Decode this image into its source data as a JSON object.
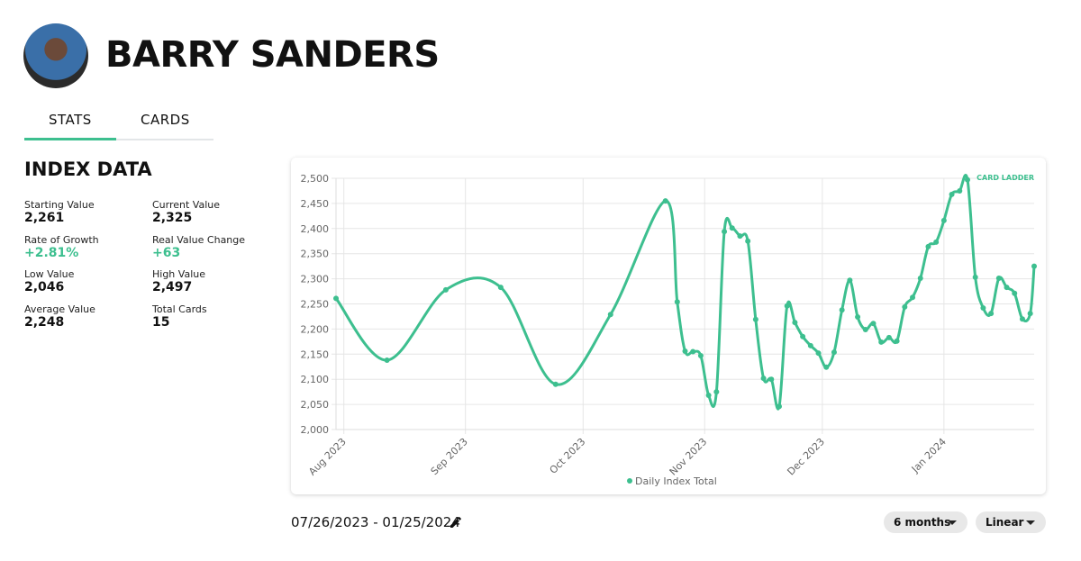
{
  "header": {
    "name": "BARRY SANDERS"
  },
  "tabs": [
    "STATS",
    "CARDS"
  ],
  "index_data": {
    "title": "INDEX DATA",
    "stats": [
      {
        "label": "Starting Value",
        "value": "2,261"
      },
      {
        "label": "Current Value",
        "value": "2,325"
      },
      {
        "label": "Rate of Growth",
        "value": "+2.81%"
      },
      {
        "label": "Real Value Change",
        "value": "+63"
      },
      {
        "label": "Low Value",
        "value": "2,046"
      },
      {
        "label": "High Value",
        "value": "2,497"
      },
      {
        "label": "Average Value",
        "value": "2,248"
      },
      {
        "label": "Total Cards",
        "value": "15"
      }
    ]
  },
  "chart_data": {
    "type": "line",
    "logo": "CARD LADDER",
    "x": [
      -2,
      11,
      26,
      40,
      54,
      68,
      82,
      85,
      87,
      89,
      91,
      93,
      95,
      97,
      99,
      101,
      103,
      105,
      107,
      109,
      111,
      113,
      115,
      117,
      119,
      121,
      123,
      125,
      127,
      129,
      131,
      133,
      135,
      137,
      139,
      141,
      143,
      145,
      147,
      149,
      151,
      153,
      155,
      157,
      159,
      161,
      163,
      165,
      167,
      169,
      171,
      173,
      175,
      176
    ],
    "series": [
      {
        "name": "Daily Index Total",
        "color": "#3dbf8f",
        "values": [
          2261,
          2138,
          2278,
          2283,
          2090,
          2229,
          2455,
          2254,
          2156,
          2155,
          2147,
          2068,
          2075,
          2394,
          2401,
          2385,
          2375,
          2219,
          2102,
          2100,
          2046,
          2246,
          2213,
          2185,
          2167,
          2152,
          2124,
          2154,
          2238,
          2297,
          2224,
          2199,
          2211,
          2174,
          2183,
          2176,
          2244,
          2263,
          2301,
          2364,
          2373,
          2416,
          2468,
          2475,
          2497,
          2303,
          2242,
          2231,
          2301,
          2283,
          2271,
          2220,
          2231,
          2325
        ]
      }
    ],
    "xlim": [
      -2,
      176
    ],
    "xticks": [
      {
        "value": 0,
        "label": "Aug 2023"
      },
      {
        "value": 31,
        "label": "Sep 2023"
      },
      {
        "value": 61,
        "label": "Oct 2023"
      },
      {
        "value": 92,
        "label": "Nov 2023"
      },
      {
        "value": 122,
        "label": "Dec 2023"
      },
      {
        "value": 153,
        "label": "Jan 2024"
      }
    ],
    "ylim": [
      2000,
      2500
    ],
    "yticks": [
      {
        "value": 2000,
        "label": "2,000"
      },
      {
        "value": 2050,
        "label": "2,050"
      },
      {
        "value": 2100,
        "label": "2,100"
      },
      {
        "value": 2150,
        "label": "2,150"
      },
      {
        "value": 2200,
        "label": "2,200"
      },
      {
        "value": 2250,
        "label": "2,250"
      },
      {
        "value": 2300,
        "label": "2,300"
      },
      {
        "value": 2350,
        "label": "2,350"
      },
      {
        "value": 2400,
        "label": "2,400"
      },
      {
        "value": 2450,
        "label": "2,450"
      },
      {
        "value": 2500,
        "label": "2,500"
      }
    ],
    "grid": true
  },
  "date_range": "07/26/2023 - 01/25/2024",
  "controls": [
    "6 months",
    "Linear"
  ]
}
